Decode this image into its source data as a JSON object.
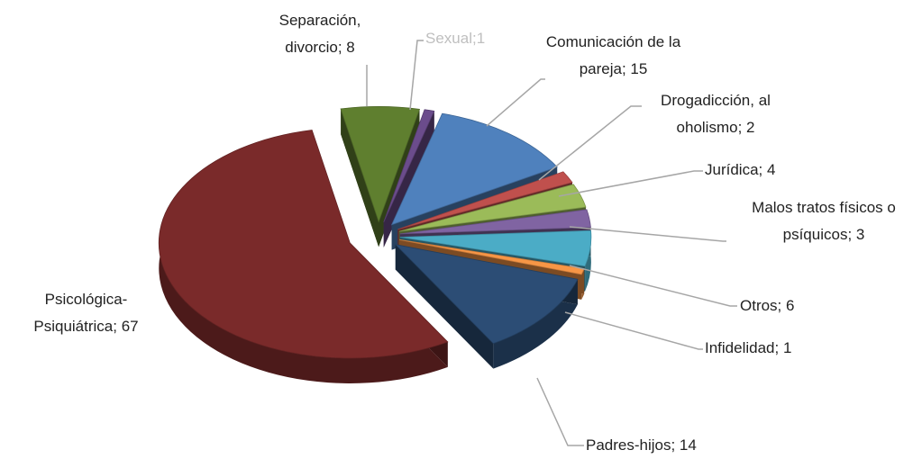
{
  "chart_data": {
    "type": "pie",
    "values": [
      8,
      1,
      15,
      2,
      4,
      3,
      6,
      1,
      14,
      67
    ],
    "value_labels": [
      "Separación, divorcio; 8",
      "Sexual;1",
      "Comunicación de la pareja; 15",
      "Drogadicción, al oholismo; 2",
      "Jurídica; 4",
      "Malos tratos físicos o psíquicos; 3",
      "Otros; 6",
      "Infidelidad; 1",
      "Padres-hijos; 14",
      "Psicológica-Psiquiátrica; 67"
    ],
    "colors": [
      "#5f7f2f",
      "#6b4c8c",
      "#4f81bd",
      "#c0504d",
      "#9bbb59",
      "#8064a2",
      "#4bacc6",
      "#f79646",
      "#2c4d75",
      "#7a2a2a"
    ]
  }
}
